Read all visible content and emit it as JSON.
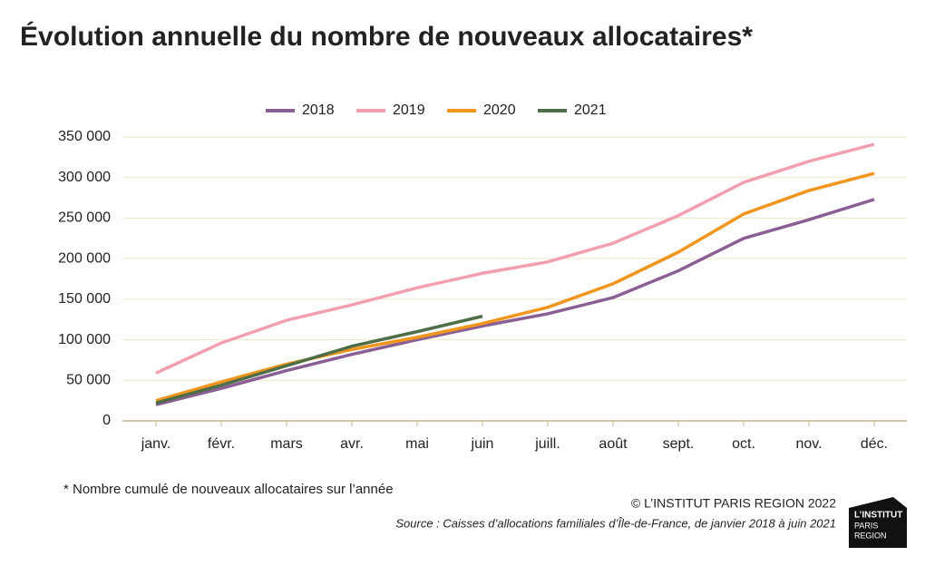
{
  "chart_data": {
    "type": "line",
    "title": "Évolution annuelle du nombre de nouveaux allocataires*",
    "categories": [
      "janv.",
      "févr.",
      "mars",
      "avr.",
      "mai",
      "juin",
      "juill.",
      "août",
      "sept.",
      "oct.",
      "nov.",
      "déc."
    ],
    "series": [
      {
        "name": "2018",
        "color": "#8a5f94",
        "values": [
          20000,
          40000,
          62000,
          82000,
          100000,
          117000,
          132000,
          152000,
          185000,
          225000,
          248000,
          273000
        ]
      },
      {
        "name": "2019",
        "color": "#f2a0b0",
        "values": [
          59000,
          96000,
          124000,
          143000,
          164000,
          182000,
          196000,
          219000,
          253000,
          294000,
          320000,
          341000
        ]
      },
      {
        "name": "2020",
        "color": "#f0961e",
        "values": [
          25000,
          48000,
          70000,
          88000,
          103000,
          120000,
          140000,
          169000,
          208000,
          255000,
          284000,
          305000
        ]
      },
      {
        "name": "2021",
        "color": "#4e6e48",
        "values": [
          22000,
          44000,
          68000,
          92000,
          110000,
          129000,
          null,
          null,
          null,
          null,
          null,
          null
        ]
      }
    ],
    "ylim": [
      0,
      350000
    ],
    "yticks": [
      0,
      {
        "value": 50000,
        "label": "50 000"
      },
      {
        "value": 100000,
        "label": "100 000"
      },
      {
        "value": 150000,
        "label": "150 000"
      },
      {
        "value": 200000,
        "label": "200 000"
      },
      {
        "value": 250000,
        "label": "250 000"
      },
      {
        "value": 300000,
        "label": "300 000"
      },
      {
        "value": 350000,
        "label": "350 000"
      }
    ],
    "grid": true,
    "legend": "top",
    "footnote": "* Nombre cumulé de nouveaux allocataires sur l’année",
    "copyright": "© L’INSTITUT PARIS REGION 2022",
    "source": "Source : Caisses d’allocations familiales d’Île-de-France, de janvier 2018 à juin 2021",
    "logo": [
      "L’INSTITUT",
      "PARIS",
      "REGION"
    ]
  }
}
